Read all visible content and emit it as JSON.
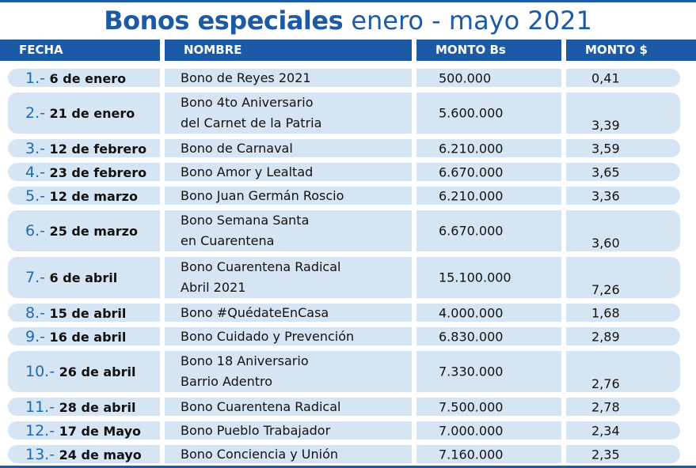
{
  "title": {
    "bold": "Bonos especiales",
    "rest": " enero - mayo 2021"
  },
  "headers": [
    "FECHA",
    "NOMBRE",
    "MONTO Bs",
    "MONTO $"
  ],
  "rows": [
    {
      "num": "1.-",
      "date": " 6 de enero",
      "name": [
        "Bono de Reyes 2021"
      ],
      "bs": "500.000",
      "usd": "0,41"
    },
    {
      "num": "2.-",
      "date": " 21 de enero",
      "name": [
        "Bono 4to Aniversario",
        "del Carnet de la Patria"
      ],
      "bs": "5.600.000",
      "usd": "3,39"
    },
    {
      "num": "3.-",
      "date": " 12 de febrero",
      "name": [
        "Bono de Carnaval"
      ],
      "bs": "6.210.000",
      "usd": "3,59"
    },
    {
      "num": "4.-",
      "date": " 23 de febrero",
      "name": [
        "Bono Amor y Lealtad"
      ],
      "bs": "6.670.000",
      "usd": "3,65"
    },
    {
      "num": "5.-",
      "date": " 12 de marzo",
      "name": [
        "Bono Juan Germán Roscio"
      ],
      "bs": "6.210.000",
      "usd": "3,36"
    },
    {
      "num": "6.-",
      "date": " 25 de marzo",
      "name": [
        "Bono Semana Santa",
        "en Cuarentena"
      ],
      "bs": "6.670.000",
      "usd": "3,60"
    },
    {
      "num": "7.-",
      "date": " 6 de abril",
      "name": [
        "Bono Cuarentena Radical",
        "Abril 2021"
      ],
      "bs": "15.100.000",
      "usd": "7,26"
    },
    {
      "num": "8.-",
      "date": " 15 de abril",
      "name": [
        "Bono #QuédateEnCasa"
      ],
      "bs": "4.000.000",
      "usd": "1,68"
    },
    {
      "num": "9.-",
      "date": " 16 de abril",
      "name": [
        "Bono Cuidado y Prevención"
      ],
      "bs": "6.830.000",
      "usd": "2,89"
    },
    {
      "num": "10.-",
      "date": " 26 de abril",
      "name": [
        "Bono 18 Aniversario",
        "Barrio Adentro"
      ],
      "bs": "7.330.000",
      "usd": "2,76"
    },
    {
      "num": "11.-",
      "date": " 28 de abril",
      "name": [
        "Bono Cuarentena Radical"
      ],
      "bs": "7.500.000",
      "usd": "2,78"
    },
    {
      "num": "12.-",
      "date": " 17 de  Mayo",
      "name": [
        "Bono Pueblo Trabajador"
      ],
      "bs": "7.000.000",
      "usd": "2,34"
    },
    {
      "num": "13.-",
      "date": " 24 de mayo",
      "name": [
        "Bono Conciencia y Unión"
      ],
      "bs": "7.160.000",
      "usd": "2,35"
    }
  ]
}
